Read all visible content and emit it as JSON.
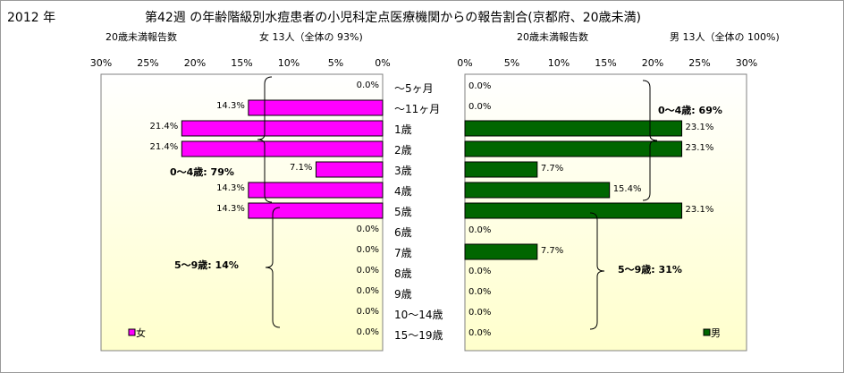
{
  "header": {
    "year": "2012 年",
    "title": "第42週 の年齢階級別水痘患者の小児科定点医療機関からの報告割合(京都府、20歳未満)"
  },
  "female_panel": {
    "sub_label": "20歳未満報告数",
    "summary": "女 13人（全体の 93%)",
    "legend": "女",
    "bracket_0_4": "0～4歳: 79%",
    "bracket_5_9": "5～9歳: 14%"
  },
  "male_panel": {
    "sub_label": "20歳未満報告数",
    "summary": "男 13人（全体の 100%)",
    "legend": "男",
    "bracket_0_4": "0～4歳: 69%",
    "bracket_5_9": "5～9歳: 31%"
  },
  "colors": {
    "female_bar": "#ff00ff",
    "male_bar": "#006600",
    "plot_bg_top": "#ffffff",
    "plot_bg_bottom": "#ffffcc"
  },
  "chart_data": [
    {
      "type": "bar",
      "orientation": "horizontal",
      "direction": "right-to-left",
      "title": "女 13人（全体の 93%)",
      "categories": [
        "～5ヶ月",
        "～11ヶ月",
        "1歳",
        "2歳",
        "3歳",
        "4歳",
        "5歳",
        "6歳",
        "7歳",
        "8歳",
        "9歳",
        "10～14歳",
        "15～19歳"
      ],
      "series": [
        {
          "name": "女",
          "values": [
            0.0,
            14.3,
            21.4,
            21.4,
            7.1,
            14.3,
            14.3,
            0.0,
            0.0,
            0.0,
            0.0,
            0.0,
            0.0
          ]
        }
      ],
      "data_labels": [
        "0.0%",
        "14.3%",
        "21.4%",
        "21.4%",
        "7.1%",
        "14.3%",
        "14.3%",
        "0.0%",
        "0.0%",
        "0.0%",
        "0.0%",
        "0.0%",
        "0.0%"
      ],
      "xlim": [
        0,
        30
      ],
      "xticks": [
        "30%",
        "25%",
        "20%",
        "15%",
        "10%",
        "5%",
        "0%"
      ],
      "legend_position": "bottom-left"
    },
    {
      "type": "bar",
      "orientation": "horizontal",
      "direction": "left-to-right",
      "title": "男 13人（全体の 100%)",
      "categories": [
        "～5ヶ月",
        "～11ヶ月",
        "1歳",
        "2歳",
        "3歳",
        "4歳",
        "5歳",
        "6歳",
        "7歳",
        "8歳",
        "9歳",
        "10～14歳",
        "15～19歳"
      ],
      "series": [
        {
          "name": "男",
          "values": [
            0.0,
            0.0,
            23.1,
            23.1,
            7.7,
            15.4,
            23.1,
            0.0,
            7.7,
            0.0,
            0.0,
            0.0,
            0.0
          ]
        }
      ],
      "data_labels": [
        "0.0%",
        "0.0%",
        "23.1%",
        "23.1%",
        "7.7%",
        "15.4%",
        "23.1%",
        "0.0%",
        "7.7%",
        "0.0%",
        "0.0%",
        "0.0%",
        "0.0%"
      ],
      "xlim": [
        0,
        30
      ],
      "xticks": [
        "0%",
        "5%",
        "10%",
        "15%",
        "20%",
        "25%",
        "30%"
      ],
      "legend_position": "bottom-right"
    }
  ]
}
